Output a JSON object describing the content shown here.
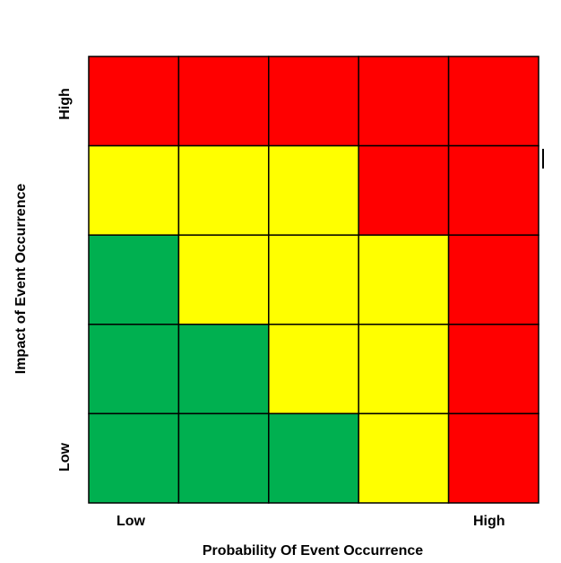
{
  "chart_data": {
    "type": "heatmap",
    "title": "",
    "xlabel": "Probability Of Event Occurrence",
    "ylabel": "Impact of Event Occurrence",
    "x_ends": {
      "low": "Low",
      "high": "High"
    },
    "y_ends": {
      "low": "Low",
      "high": "High"
    },
    "colors": {
      "red": "#ff0000",
      "yellow": "#ffff00",
      "green": "#00b050",
      "border": "#000000"
    },
    "rows_top_to_bottom": [
      [
        "red",
        "red",
        "red",
        "red",
        "red"
      ],
      [
        "yellow",
        "yellow",
        "yellow",
        "red",
        "red"
      ],
      [
        "green",
        "yellow",
        "yellow",
        "yellow",
        "red"
      ],
      [
        "green",
        "green",
        "yellow",
        "yellow",
        "red"
      ],
      [
        "green",
        "green",
        "green",
        "yellow",
        "red"
      ]
    ]
  }
}
